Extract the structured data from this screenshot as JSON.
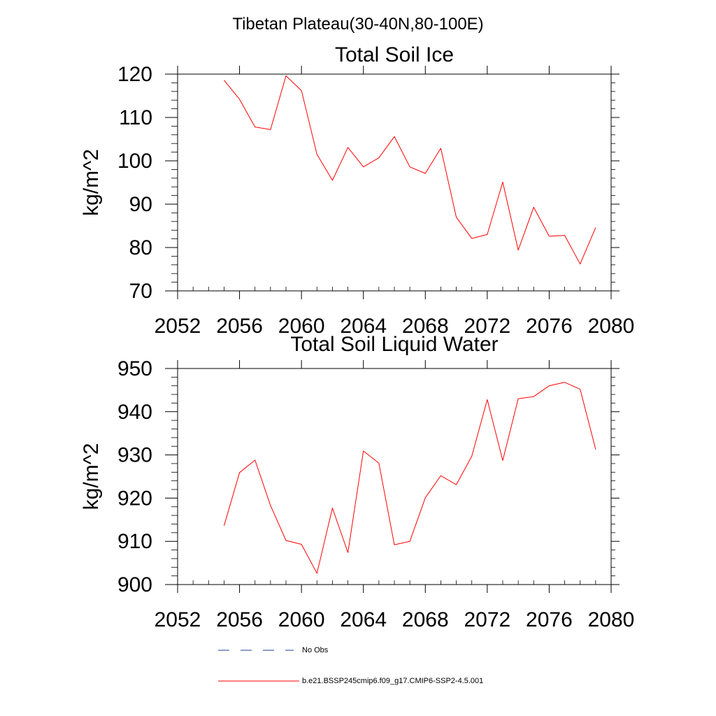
{
  "figure_title": "Tibetan Plateau(30-40N,80-100E)",
  "colors": {
    "model_line": "#ff0000",
    "obs_line": "#1f3f8f",
    "axes": "#000000"
  },
  "legend": {
    "obs_label": "No Obs",
    "model_label": "b.e21.BSSP245cmip6.f09_g17.CMIP6-SSP2-4.5.001"
  },
  "chart_data": [
    {
      "type": "line",
      "title": "Total Soil Ice",
      "xlabel": "",
      "ylabel": "kg/m^2",
      "xlim": [
        2052,
        2080
      ],
      "ylim": [
        70,
        120
      ],
      "xticks": [
        2052,
        2056,
        2060,
        2064,
        2068,
        2072,
        2076,
        2080
      ],
      "yticks": [
        70,
        80,
        90,
        100,
        110,
        120
      ],
      "x": [
        2055,
        2056,
        2057,
        2058,
        2059,
        2060,
        2061,
        2062,
        2063,
        2064,
        2065,
        2066,
        2067,
        2068,
        2069,
        2070,
        2071,
        2072,
        2073,
        2074,
        2075,
        2076,
        2077,
        2078,
        2079
      ],
      "series": [
        {
          "name": "b.e21.BSSP245cmip6.f09_g17.CMIP6-SSP2-4.5.001",
          "values": [
            118.6,
            114.2,
            107.8,
            107.2,
            119.6,
            116.2,
            101.5,
            95.5,
            103.1,
            98.6,
            100.7,
            105.6,
            98.6,
            97.1,
            102.9,
            87.0,
            82.1,
            83.0,
            95.1,
            79.4,
            89.3,
            82.6,
            82.8,
            76.2,
            84.6
          ]
        }
      ]
    },
    {
      "type": "line",
      "title": "Total Soil Liquid Water",
      "xlabel": "",
      "ylabel": "kg/m^2",
      "xlim": [
        2052,
        2080
      ],
      "ylim": [
        900,
        950
      ],
      "xticks": [
        2052,
        2056,
        2060,
        2064,
        2068,
        2072,
        2076,
        2080
      ],
      "yticks": [
        900,
        910,
        920,
        930,
        940,
        950
      ],
      "x": [
        2055,
        2056,
        2057,
        2058,
        2059,
        2060,
        2061,
        2062,
        2063,
        2064,
        2065,
        2066,
        2067,
        2068,
        2069,
        2070,
        2071,
        2072,
        2073,
        2074,
        2075,
        2076,
        2077,
        2078,
        2079
      ],
      "series": [
        {
          "name": "b.e21.BSSP245cmip6.f09_g17.CMIP6-SSP2-4.5.001",
          "values": [
            913.6,
            925.9,
            928.8,
            918.3,
            910.2,
            909.3,
            902.6,
            917.7,
            907.4,
            930.9,
            928.1,
            909.2,
            910.0,
            920.1,
            925.2,
            923.1,
            929.7,
            942.8,
            928.7,
            943.0,
            943.5,
            946.0,
            946.8,
            945.2,
            931.3
          ]
        }
      ]
    }
  ]
}
